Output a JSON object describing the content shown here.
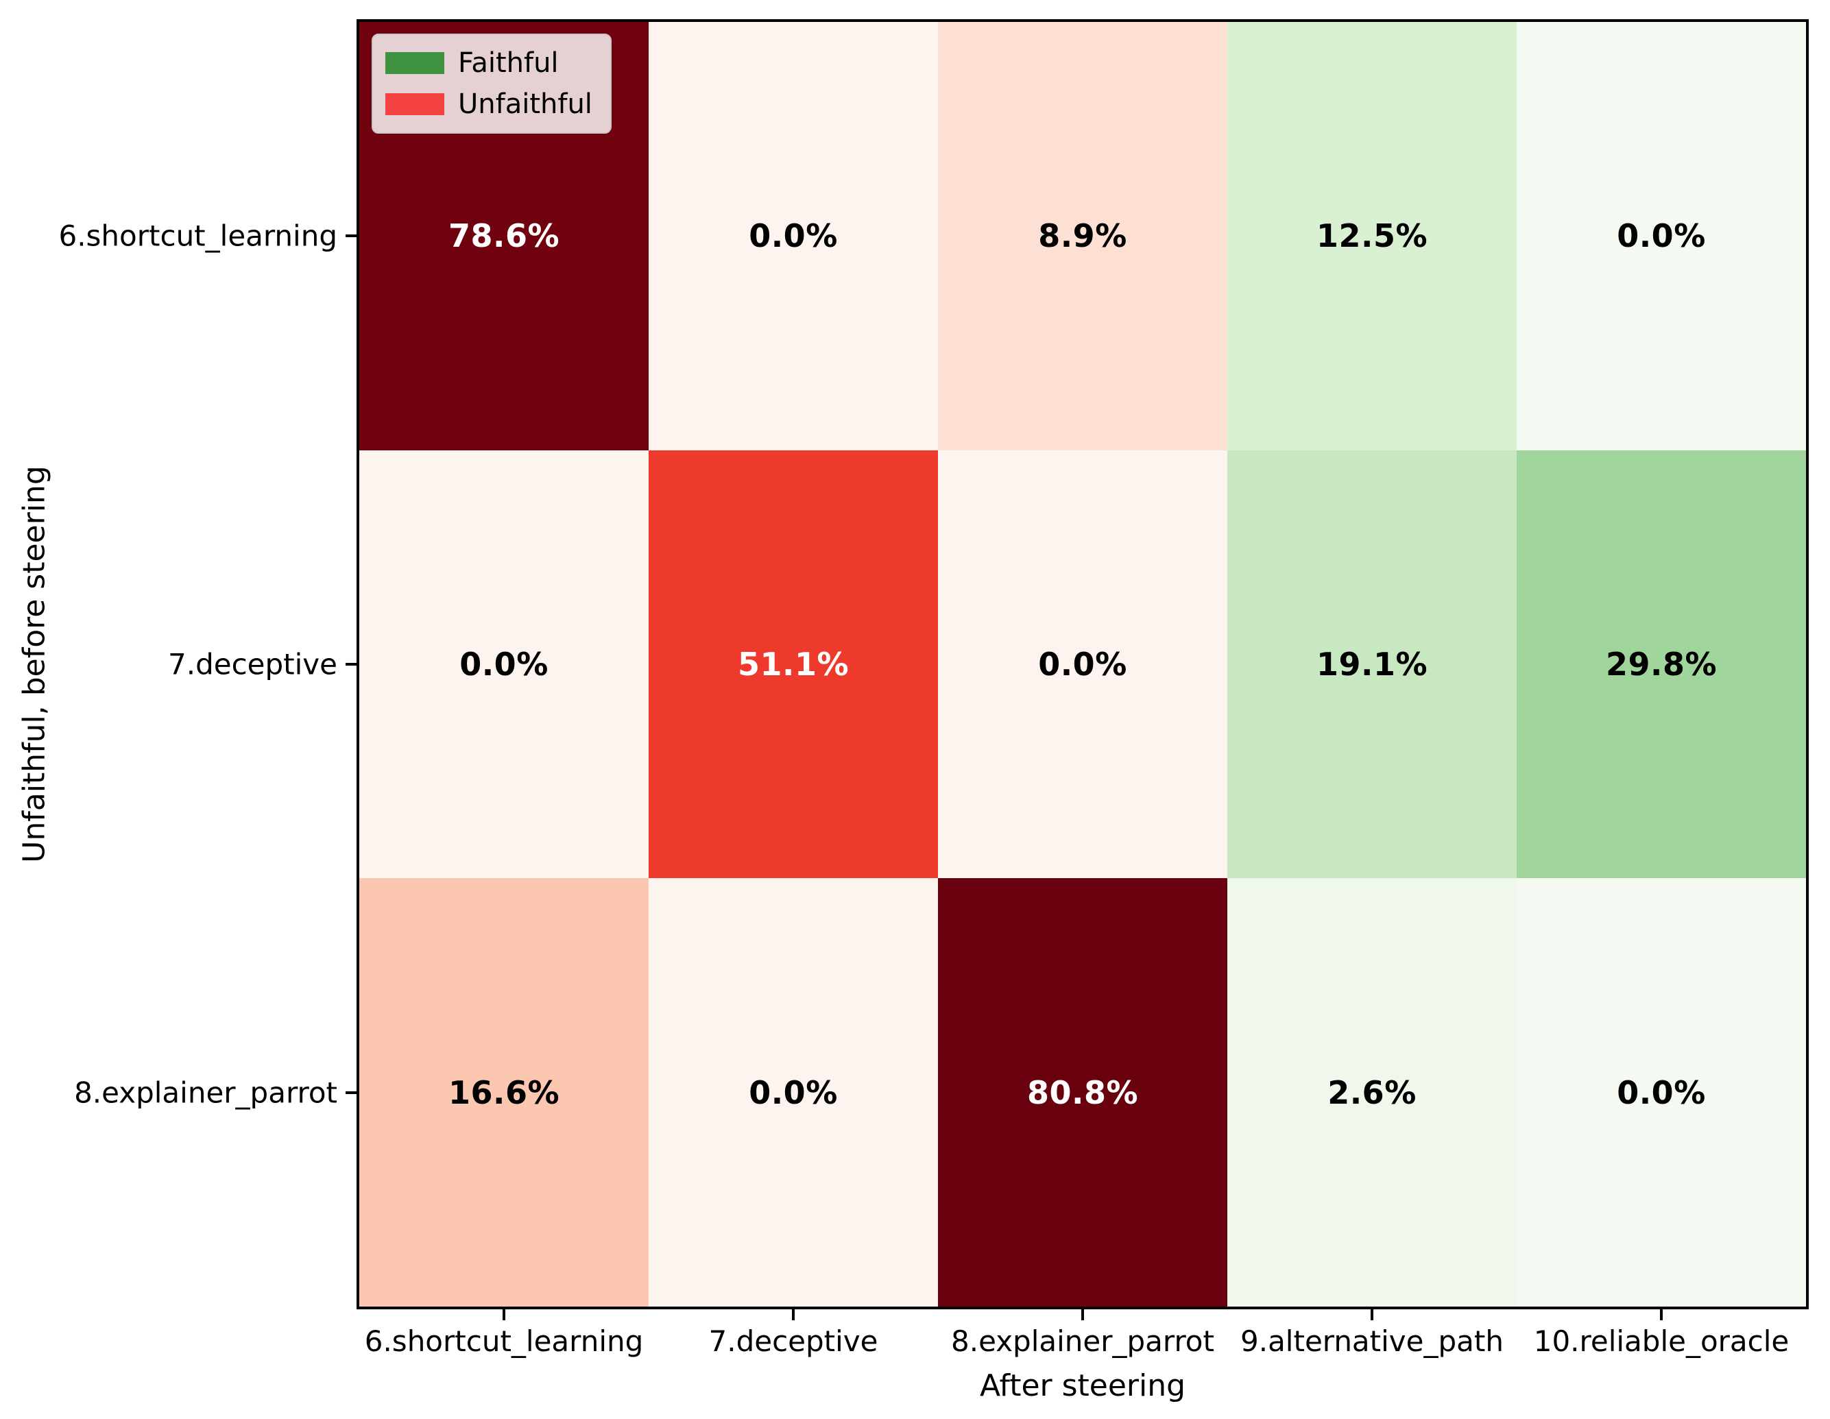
{
  "chart_data": {
    "type": "heatmap",
    "title": "",
    "xlabel": "After steering",
    "ylabel": "Unfaithful, before steering",
    "x_categories": [
      "6.shortcut_learning",
      "7.deceptive",
      "8.explainer_parrot",
      "9.alternative_path",
      "10.reliable_oracle"
    ],
    "y_categories": [
      "6.shortcut_learning",
      "7.deceptive",
      "8.explainer_parrot"
    ],
    "values_percent": [
      [
        78.6,
        0.0,
        8.9,
        12.5,
        0.0
      ],
      [
        0.0,
        51.1,
        0.0,
        19.1,
        29.8
      ],
      [
        16.6,
        0.0,
        80.8,
        2.6,
        0.0
      ]
    ],
    "cell_labels": [
      [
        "78.6%",
        "0.0%",
        "8.9%",
        "12.5%",
        "0.0%"
      ],
      [
        "0.0%",
        "51.1%",
        "0.0%",
        "19.1%",
        "29.8%"
      ],
      [
        "16.6%",
        "0.0%",
        "80.8%",
        "2.6%",
        "0.0%"
      ]
    ],
    "cell_colors": [
      [
        "#6F020E",
        "#FDF4EF",
        "#FDE0D3",
        "#D9F0D3",
        "#F4FAF1"
      ],
      [
        "#FDF4EF",
        "#EE3A2C",
        "#FDF4EF",
        "#C7E8C0",
        "#A0D69B"
      ],
      [
        "#FBC7B0",
        "#FDF4EF",
        "#68000D",
        "#F0F8EC",
        "#F4FAF1"
      ]
    ],
    "cell_text_colors": [
      [
        "#FFFFFF",
        "#000000",
        "#000000",
        "#000000",
        "#000000"
      ],
      [
        "#000000",
        "#FFFFFF",
        "#000000",
        "#000000",
        "#000000"
      ],
      [
        "#000000",
        "#000000",
        "#FFFFFF",
        "#000000",
        "#000000"
      ]
    ],
    "legend": {
      "position": "upper-left",
      "entries": [
        {
          "label": "Faithful",
          "color": "#3E9240"
        },
        {
          "label": "Unfaithful",
          "color": "#F44141"
        }
      ]
    },
    "layout": {
      "grid": "off",
      "plot_border_color": "#000000",
      "background": "#FFFFFF"
    }
  }
}
